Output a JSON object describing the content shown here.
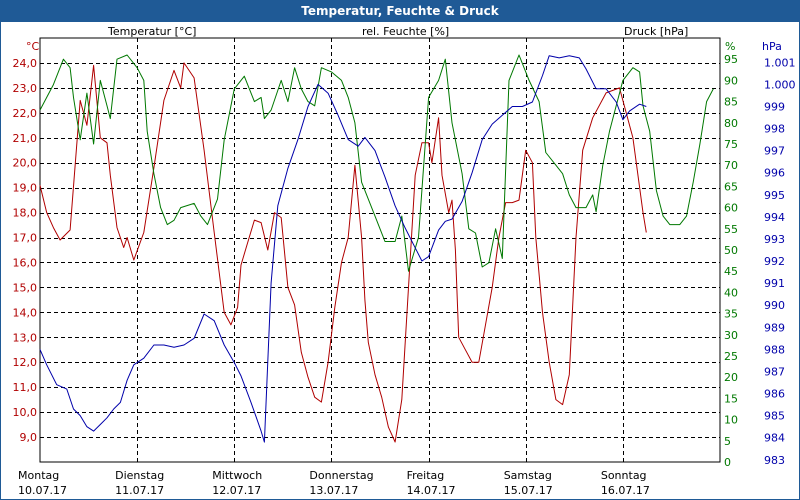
{
  "window": {
    "title": "Temperatur, Feuchte & Druck"
  },
  "colors": {
    "temperature": "#b00000",
    "humidity": "#007800",
    "pressure": "#0000aa",
    "grid": "#000000",
    "titlebar": "#1f5a96"
  },
  "chart_data": {
    "type": "line",
    "title": "Temperatur, Feuchte & Druck",
    "x": {
      "start": "10.07.17 00:00",
      "end": "16.07.17 24:00",
      "days": [
        {
          "weekday": "Montag",
          "date": "10.07.17"
        },
        {
          "weekday": "Dienstag",
          "date": "11.07.17"
        },
        {
          "weekday": "Mittwoch",
          "date": "12.07.17"
        },
        {
          "weekday": "Donnerstag",
          "date": "13.07.17"
        },
        {
          "weekday": "Freitag",
          "date": "14.07.17"
        },
        {
          "weekday": "Samstag",
          "date": "15.07.17"
        },
        {
          "weekday": "Sonntag",
          "date": "16.07.17"
        }
      ]
    },
    "axes": {
      "temperature": {
        "label": "Temperatur [°C]",
        "unit": "°C",
        "range": [
          8,
          25
        ],
        "ticks": [
          "24,0",
          "23,0",
          "22,0",
          "21,0",
          "20,0",
          "19,0",
          "18,0",
          "17,0",
          "16,0",
          "15,0",
          "14,0",
          "13,0",
          "12,0",
          "11,0",
          "10,0",
          "9,0"
        ]
      },
      "humidity": {
        "label": "rel. Feuchte [%]",
        "unit": "%",
        "range": [
          0,
          100
        ],
        "ticks": [
          "95",
          "90",
          "85",
          "80",
          "75",
          "70",
          "65",
          "60",
          "55",
          "50",
          "45",
          "40",
          "35",
          "30",
          "25",
          "20",
          "15",
          "10",
          "5",
          "0"
        ]
      },
      "pressure": {
        "label": "Druck [hPa]",
        "unit": "hPa",
        "range": [
          982.9,
          1002.1
        ],
        "ticks": [
          "1.001",
          "1.000",
          "999",
          "998",
          "997",
          "996",
          "995",
          "994",
          "993",
          "992",
          "991",
          "990",
          "989",
          "988",
          "987",
          "986",
          "985",
          "984",
          "983"
        ]
      }
    },
    "grid": true,
    "series": [
      {
        "name": "Temperatur [°C]",
        "axis": "temperature",
        "color": "#b00000",
        "points": [
          [
            0.0,
            19.1
          ],
          [
            0.1,
            18.0
          ],
          [
            0.2,
            17.4
          ],
          [
            0.3,
            16.9
          ],
          [
            0.45,
            17.3
          ],
          [
            0.6,
            22.5
          ],
          [
            0.7,
            21.5
          ],
          [
            0.8,
            23.9
          ],
          [
            0.9,
            21.0
          ],
          [
            1.0,
            20.8
          ],
          [
            1.05,
            19.5
          ],
          [
            1.15,
            17.4
          ],
          [
            1.25,
            16.6
          ],
          [
            1.3,
            17.0
          ],
          [
            1.4,
            16.1
          ],
          [
            1.55,
            17.2
          ],
          [
            1.7,
            19.8
          ],
          [
            1.85,
            22.5
          ],
          [
            2.0,
            23.7
          ],
          [
            2.1,
            23.0
          ],
          [
            2.15,
            24.0
          ],
          [
            2.3,
            23.4
          ],
          [
            2.45,
            20.5
          ],
          [
            2.6,
            17.2
          ],
          [
            2.75,
            14.0
          ],
          [
            2.85,
            13.5
          ],
          [
            2.95,
            14.2
          ],
          [
            3.0,
            15.9
          ],
          [
            3.1,
            16.8
          ],
          [
            3.2,
            17.7
          ],
          [
            3.3,
            17.6
          ],
          [
            3.4,
            16.5
          ],
          [
            3.5,
            18.0
          ],
          [
            3.6,
            17.8
          ],
          [
            3.7,
            15.0
          ],
          [
            3.8,
            14.3
          ],
          [
            3.9,
            12.4
          ],
          [
            4.0,
            11.4
          ],
          [
            4.1,
            10.6
          ],
          [
            4.2,
            10.4
          ],
          [
            4.3,
            12.0
          ],
          [
            4.4,
            14.2
          ],
          [
            4.5,
            16.0
          ],
          [
            4.6,
            17.0
          ],
          [
            4.7,
            19.9
          ],
          [
            4.8,
            17.0
          ],
          [
            4.85,
            14.5
          ],
          [
            4.9,
            12.8
          ],
          [
            5.0,
            11.5
          ],
          [
            5.1,
            10.6
          ],
          [
            5.2,
            9.4
          ],
          [
            5.3,
            8.8
          ],
          [
            5.4,
            10.5
          ],
          [
            5.5,
            15.0
          ],
          [
            5.6,
            19.5
          ],
          [
            5.7,
            20.8
          ],
          [
            5.8,
            20.8
          ],
          [
            5.85,
            20.0
          ],
          [
            5.95,
            21.8
          ],
          [
            6.0,
            19.5
          ],
          [
            6.1,
            18.0
          ],
          [
            6.15,
            18.5
          ],
          [
            6.2,
            16.5
          ],
          [
            6.25,
            13.0
          ],
          [
            6.35,
            12.5
          ],
          [
            6.45,
            12.0
          ],
          [
            6.55,
            12.0
          ],
          [
            6.65,
            13.5
          ],
          [
            6.75,
            15.0
          ],
          [
            6.85,
            17.0
          ],
          [
            6.95,
            18.4
          ],
          [
            7.05,
            18.4
          ],
          [
            7.15,
            18.5
          ],
          [
            7.25,
            20.5
          ],
          [
            7.35,
            20.0
          ],
          [
            7.4,
            17.0
          ],
          [
            7.5,
            14.0
          ],
          [
            7.6,
            12.0
          ],
          [
            7.7,
            10.5
          ],
          [
            7.8,
            10.3
          ],
          [
            7.9,
            11.5
          ],
          [
            8.0,
            17.0
          ],
          [
            8.1,
            20.5
          ],
          [
            8.25,
            21.8
          ],
          [
            8.45,
            22.8
          ],
          [
            8.65,
            23.0
          ],
          [
            8.85,
            21.0
          ],
          [
            9.0,
            18.0
          ],
          [
            9.05,
            17.2
          ]
        ]
      },
      {
        "name": "rel. Feuchte [%]",
        "axis": "humidity",
        "color": "#007800",
        "points": [
          [
            0.0,
            83
          ],
          [
            0.2,
            89
          ],
          [
            0.35,
            95
          ],
          [
            0.45,
            93
          ],
          [
            0.5,
            86
          ],
          [
            0.6,
            76
          ],
          [
            0.7,
            87
          ],
          [
            0.8,
            75
          ],
          [
            0.9,
            90
          ],
          [
            1.0,
            84
          ],
          [
            1.05,
            81
          ],
          [
            1.15,
            95
          ],
          [
            1.3,
            96
          ],
          [
            1.45,
            93
          ],
          [
            1.55,
            90
          ],
          [
            1.6,
            78
          ],
          [
            1.7,
            68
          ],
          [
            1.8,
            60
          ],
          [
            1.9,
            56
          ],
          [
            2.0,
            57
          ],
          [
            2.1,
            60
          ],
          [
            2.3,
            61
          ],
          [
            2.4,
            58
          ],
          [
            2.5,
            56
          ],
          [
            2.55,
            58
          ],
          [
            2.65,
            62
          ],
          [
            2.75,
            76
          ],
          [
            2.9,
            88
          ],
          [
            3.05,
            91
          ],
          [
            3.2,
            85
          ],
          [
            3.3,
            86
          ],
          [
            3.35,
            81
          ],
          [
            3.45,
            83
          ],
          [
            3.6,
            90
          ],
          [
            3.7,
            85
          ],
          [
            3.8,
            93
          ],
          [
            3.9,
            88
          ],
          [
            4.0,
            85
          ],
          [
            4.1,
            84
          ],
          [
            4.2,
            93
          ],
          [
            4.35,
            92
          ],
          [
            4.5,
            90
          ],
          [
            4.6,
            86
          ],
          [
            4.7,
            80
          ],
          [
            4.8,
            66
          ],
          [
            5.0,
            58
          ],
          [
            5.15,
            52
          ],
          [
            5.3,
            52
          ],
          [
            5.4,
            58
          ],
          [
            5.5,
            45
          ],
          [
            5.65,
            53
          ],
          [
            5.8,
            86
          ],
          [
            5.95,
            90
          ],
          [
            6.05,
            95
          ],
          [
            6.15,
            80
          ],
          [
            6.3,
            68
          ],
          [
            6.4,
            55
          ],
          [
            6.5,
            54
          ],
          [
            6.6,
            46
          ],
          [
            6.7,
            47
          ],
          [
            6.8,
            55
          ],
          [
            6.9,
            48
          ],
          [
            7.0,
            90
          ],
          [
            7.15,
            96
          ],
          [
            7.3,
            90
          ],
          [
            7.45,
            85
          ],
          [
            7.55,
            73
          ],
          [
            7.7,
            70
          ],
          [
            7.8,
            68
          ],
          [
            7.9,
            63
          ],
          [
            8.0,
            60
          ],
          [
            8.15,
            60
          ],
          [
            8.25,
            63
          ],
          [
            8.3,
            59
          ],
          [
            8.4,
            70
          ],
          [
            8.5,
            78
          ],
          [
            8.6,
            84
          ],
          [
            8.7,
            90
          ],
          [
            8.85,
            93
          ],
          [
            8.95,
            92
          ],
          [
            9.0,
            84
          ],
          [
            9.1,
            78
          ],
          [
            9.2,
            64
          ],
          [
            9.3,
            58
          ],
          [
            9.4,
            56
          ],
          [
            9.55,
            56
          ],
          [
            9.65,
            58
          ],
          [
            9.75,
            66
          ],
          [
            9.85,
            75
          ],
          [
            9.95,
            85
          ],
          [
            10.05,
            88
          ]
        ]
      },
      {
        "name": "Druck [hPa]",
        "axis": "pressure",
        "color": "#0000aa",
        "points": [
          [
            0.0,
            988.0
          ],
          [
            0.1,
            987.3
          ],
          [
            0.25,
            986.4
          ],
          [
            0.4,
            986.2
          ],
          [
            0.5,
            985.3
          ],
          [
            0.6,
            985.0
          ],
          [
            0.7,
            984.5
          ],
          [
            0.8,
            984.3
          ],
          [
            0.9,
            984.6
          ],
          [
            1.0,
            984.9
          ],
          [
            1.1,
            985.3
          ],
          [
            1.2,
            985.6
          ],
          [
            1.3,
            986.6
          ],
          [
            1.4,
            987.3
          ],
          [
            1.55,
            987.6
          ],
          [
            1.7,
            988.2
          ],
          [
            1.85,
            988.2
          ],
          [
            2.0,
            988.1
          ],
          [
            2.15,
            988.2
          ],
          [
            2.3,
            988.5
          ],
          [
            2.45,
            989.6
          ],
          [
            2.6,
            989.3
          ],
          [
            2.75,
            988.2
          ],
          [
            2.9,
            987.4
          ],
          [
            3.0,
            986.8
          ],
          [
            3.15,
            985.6
          ],
          [
            3.3,
            984.3
          ],
          [
            3.35,
            983.8
          ],
          [
            3.45,
            991.0
          ],
          [
            3.55,
            994.5
          ],
          [
            3.7,
            996.2
          ],
          [
            3.85,
            997.5
          ],
          [
            4.0,
            999.0
          ],
          [
            4.15,
            1000.0
          ],
          [
            4.3,
            999.6
          ],
          [
            4.45,
            998.6
          ],
          [
            4.6,
            997.5
          ],
          [
            4.75,
            997.2
          ],
          [
            4.85,
            997.6
          ],
          [
            5.0,
            997.0
          ],
          [
            5.15,
            995.8
          ],
          [
            5.3,
            994.5
          ],
          [
            5.45,
            993.5
          ],
          [
            5.6,
            992.6
          ],
          [
            5.7,
            992.0
          ],
          [
            5.8,
            992.2
          ],
          [
            5.95,
            993.4
          ],
          [
            6.05,
            993.8
          ],
          [
            6.15,
            993.9
          ],
          [
            6.3,
            994.7
          ],
          [
            6.45,
            996.0
          ],
          [
            6.6,
            997.5
          ],
          [
            6.75,
            998.2
          ],
          [
            6.9,
            998.6
          ],
          [
            7.05,
            999.0
          ],
          [
            7.2,
            999.0
          ],
          [
            7.35,
            999.2
          ],
          [
            7.5,
            1000.4
          ],
          [
            7.6,
            1001.3
          ],
          [
            7.75,
            1001.2
          ],
          [
            7.9,
            1001.3
          ],
          [
            8.05,
            1001.2
          ],
          [
            8.15,
            1000.7
          ],
          [
            8.3,
            999.8
          ],
          [
            8.45,
            999.8
          ],
          [
            8.6,
            999.2
          ],
          [
            8.7,
            998.4
          ],
          [
            8.8,
            998.8
          ],
          [
            8.95,
            999.1
          ],
          [
            9.05,
            999.0
          ]
        ]
      }
    ]
  }
}
